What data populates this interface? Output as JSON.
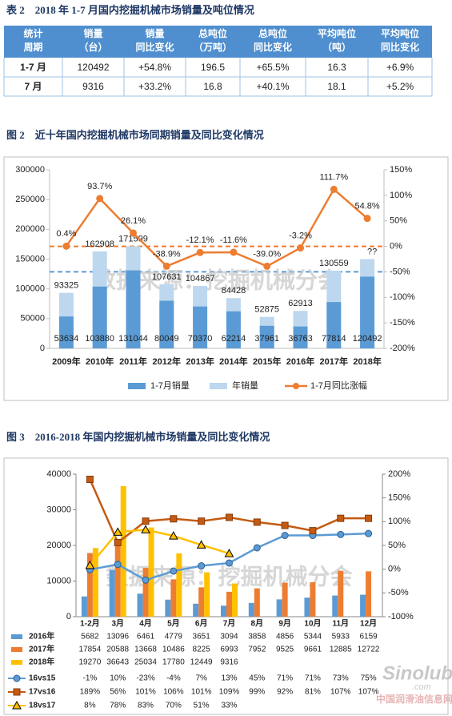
{
  "table": {
    "title": "表 2　2018 年 1-7 月国内挖掘机械市场销量及吨位情况",
    "header": [
      [
        "统计",
        "周期"
      ],
      [
        "销量",
        "（台）"
      ],
      [
        "销量",
        "同比变化"
      ],
      [
        "总吨位",
        "（万吨）"
      ],
      [
        "总吨位",
        "同比变化"
      ],
      [
        "平均吨位",
        "（吨）"
      ],
      [
        "平均吨位",
        "同比变化"
      ]
    ],
    "rows": [
      [
        "1-7 月",
        "120492",
        "+54.8%",
        "196.5",
        "+65.5%",
        "16.3",
        "+6.9%"
      ],
      [
        "7 月",
        "9316",
        "+33.2%",
        "16.8",
        "+40.1%",
        "18.1",
        "+5.2%"
      ]
    ]
  },
  "chart_data": [
    {
      "type": "combo",
      "title": "图 2　近十年国内挖掘机械市场同期销量及同比变化情况",
      "categories": [
        "2009年",
        "2010年",
        "2011年",
        "2012年",
        "2013年",
        "2014年",
        "2015年",
        "2016年",
        "2017年",
        "2018年"
      ],
      "bar_mode": "overlap",
      "series": [
        {
          "name": "1-7月销量",
          "kind": "bar",
          "color": "#5b9bd5",
          "values": [
            53634,
            103880,
            131044,
            80049,
            70370,
            62214,
            37961,
            36763,
            77814,
            120492
          ]
        },
        {
          "name": "年销量",
          "kind": "bar",
          "color": "#bdd7ee",
          "values": [
            93325,
            162908,
            171599,
            107631,
            104867,
            84428,
            52875,
            62913,
            130559,
            150000
          ],
          "value_labels": [
            "93325",
            "162908",
            "171599",
            "107631",
            "104867",
            "84428",
            "52875",
            "62913",
            "130559",
            null
          ]
        },
        {
          "name": "1-7月同比涨幅",
          "kind": "line",
          "axis": "y2",
          "color": "#ed7d31",
          "marker": "circle",
          "values": [
            0.4,
            93.7,
            26.1,
            -38.9,
            -12.1,
            -11.6,
            -39.0,
            -3.2,
            111.7,
            54.8
          ],
          "value_labels": [
            "0.4%",
            "93.7%",
            "26.1%",
            "-38.9%",
            "-12.1%",
            "-11.6%",
            "-39.0%",
            "-3.2%",
            "111.7%",
            "54.8%"
          ]
        }
      ],
      "ylim": [
        0,
        300000
      ],
      "yticks": [
        0,
        50000,
        100000,
        150000,
        200000,
        250000,
        300000
      ],
      "y2lim": [
        -200,
        150
      ],
      "y2ticks": [
        {
          "value": -200,
          "label": "-200%"
        },
        {
          "value": -150,
          "label": "-150%"
        },
        {
          "value": -100,
          "label": "-100%"
        },
        {
          "value": -50,
          "label": "-50%"
        },
        {
          "value": 0,
          "label": "0%"
        },
        {
          "value": 50,
          "label": "50%"
        },
        {
          "value": 100,
          "label": "100%"
        },
        {
          "value": 150,
          "label": "150%"
        }
      ],
      "reference_lines": [
        {
          "axis": "y2",
          "value": 0,
          "color": "#ed7d31"
        },
        {
          "axis": "y2",
          "value": -50,
          "color": "#5b9bd5"
        }
      ],
      "annotations": [
        "??"
      ],
      "watermark": "数据来源：挖掘机械分会",
      "grid": false,
      "data_labels": true,
      "legend": "bottom"
    },
    {
      "type": "combo",
      "title": "图 3　2016-2018 年国内挖掘机械市场销量及同比变化情况",
      "categories": [
        "1-2月",
        "3月",
        "4月",
        "5月",
        "6月",
        "7月",
        "8月",
        "9月",
        "10月",
        "11月",
        "12月"
      ],
      "bar_mode": "group",
      "series": [
        {
          "name": "2016年",
          "kind": "bar",
          "color": "#5b9bd5",
          "values": [
            5682,
            13096,
            6461,
            4779,
            3651,
            3094,
            3858,
            4856,
            5344,
            5933,
            6159
          ]
        },
        {
          "name": "2017年",
          "kind": "bar",
          "color": "#ed7d31",
          "values": [
            17854,
            20588,
            13668,
            10486,
            8225,
            6993,
            7952,
            9525,
            9661,
            12885,
            12722
          ]
        },
        {
          "name": "2018年",
          "kind": "bar",
          "color": "#ffc000",
          "values": [
            19270,
            36643,
            25034,
            17780,
            12449,
            9316,
            null,
            null,
            null,
            null,
            null
          ]
        },
        {
          "name": "16vs15",
          "kind": "line",
          "axis": "y2",
          "color": "#5b9bd5",
          "marker": "circle",
          "values": [
            -1,
            10,
            -23,
            -4,
            7,
            13,
            45,
            71,
            71,
            73,
            75
          ],
          "value_labels": [
            "-1%",
            "10%",
            "-23%",
            "-4%",
            "7%",
            "13%",
            "45%",
            "71%",
            "71%",
            "73%",
            "75%"
          ]
        },
        {
          "name": "17vs16",
          "kind": "line",
          "axis": "y2",
          "color": "#c55a11",
          "marker": "square",
          "values": [
            189,
            56,
            101,
            106,
            101,
            109,
            99,
            92,
            81,
            107,
            107
          ],
          "value_labels": [
            "189%",
            "56%",
            "101%",
            "106%",
            "101%",
            "109%",
            "99%",
            "92%",
            "81%",
            "107%",
            "107%"
          ]
        },
        {
          "name": "18vs17",
          "kind": "line",
          "axis": "y2",
          "color": "#ffc000",
          "marker": "triangle",
          "values": [
            8,
            78,
            83,
            70,
            51,
            33,
            null,
            null,
            null,
            null,
            null
          ],
          "value_labels": [
            "8%",
            "78%",
            "83%",
            "70%",
            "51%",
            "33%",
            null,
            null,
            null,
            null,
            null
          ]
        }
      ],
      "ylim": [
        0,
        40000
      ],
      "yticks": [
        0,
        10000,
        20000,
        30000,
        40000
      ],
      "y2lim": [
        -100,
        200
      ],
      "y2ticks": [
        {
          "value": -100,
          "label": "-100%"
        },
        {
          "value": -50,
          "label": "-50%"
        },
        {
          "value": 0,
          "label": "0%"
        },
        {
          "value": 50,
          "label": "50%"
        },
        {
          "value": 100,
          "label": "100%"
        },
        {
          "value": 150,
          "label": "150%"
        },
        {
          "value": 200,
          "label": "200%"
        }
      ],
      "watermark": "数据来源：挖掘机械分会",
      "grid": false,
      "data_table": true
    }
  ],
  "logo": {
    "name": "Sinolub",
    "suffix": ".com",
    "site": "中国润滑油信息网"
  }
}
